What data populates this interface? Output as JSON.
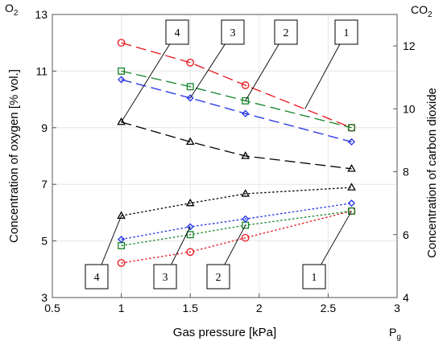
{
  "chart_data": {
    "type": "line",
    "xlabel": "Gas pressure [kPa]",
    "xsymbol": {
      "main": "P",
      "sub": "g"
    },
    "ylabel_left": "Concentration of oxygen [% vol.]",
    "ylabel_right": "Concentration of carbon dioxide",
    "y_left_symbol": {
      "main": "O",
      "sub": "2"
    },
    "y_right_symbol": {
      "main": "CO",
      "sub": "2"
    },
    "xlim": [
      0.5,
      3
    ],
    "xticks": [
      "0.5",
      "1",
      "1.5",
      "2",
      "2.5",
      "3"
    ],
    "ylim_left": [
      3,
      13
    ],
    "yticks_left": [
      "3",
      "5",
      "7",
      "9",
      "11",
      "13"
    ],
    "ylim_right": [
      4,
      13
    ],
    "yticks_right": [
      "4",
      "6",
      "8",
      "10",
      "12"
    ],
    "grid": true,
    "x": [
      1,
      1.5,
      1.9,
      2.67
    ],
    "series": [
      {
        "label": "1",
        "axis": "left",
        "quantity": "O2",
        "color": "#e8141b",
        "marker": "circle",
        "dash": "long-dash",
        "values": [
          12.0,
          11.3,
          10.5,
          9.0
        ]
      },
      {
        "label": "2",
        "axis": "left",
        "quantity": "O2",
        "color": "#13822a",
        "marker": "square",
        "dash": "long-dash",
        "values": [
          11.0,
          10.45,
          9.95,
          9.0
        ]
      },
      {
        "label": "3",
        "axis": "left",
        "quantity": "O2",
        "color": "#1f2fe6",
        "marker": "diamond",
        "dash": "long-dash",
        "values": [
          10.7,
          10.05,
          9.5,
          8.5
        ]
      },
      {
        "label": "4",
        "axis": "left",
        "quantity": "O2",
        "color": "#000000",
        "marker": "triangle",
        "dash": "long-dash",
        "values": [
          9.2,
          8.5,
          8.0,
          7.55
        ]
      },
      {
        "label": "1",
        "axis": "right",
        "quantity": "CO2",
        "color": "#e8141b",
        "marker": "circle",
        "dash": "dotted",
        "values": [
          5.1,
          5.45,
          5.9,
          6.75
        ]
      },
      {
        "label": "2",
        "axis": "right",
        "quantity": "CO2",
        "color": "#13822a",
        "marker": "square",
        "dash": "dotted",
        "values": [
          5.65,
          6.0,
          6.3,
          6.75
        ]
      },
      {
        "label": "3",
        "axis": "right",
        "quantity": "CO2",
        "color": "#1f2fe6",
        "marker": "diamond",
        "dash": "dotted",
        "values": [
          5.85,
          6.25,
          6.5,
          7.0
        ]
      },
      {
        "label": "4",
        "axis": "right",
        "quantity": "CO2",
        "color": "#000000",
        "marker": "triangle",
        "dash": "dotted",
        "values": [
          6.6,
          7.0,
          7.3,
          7.5
        ]
      }
    ],
    "callouts_top": [
      "4",
      "3",
      "2",
      "1"
    ],
    "callouts_bottom": [
      "4",
      "3",
      "2",
      "1"
    ]
  }
}
